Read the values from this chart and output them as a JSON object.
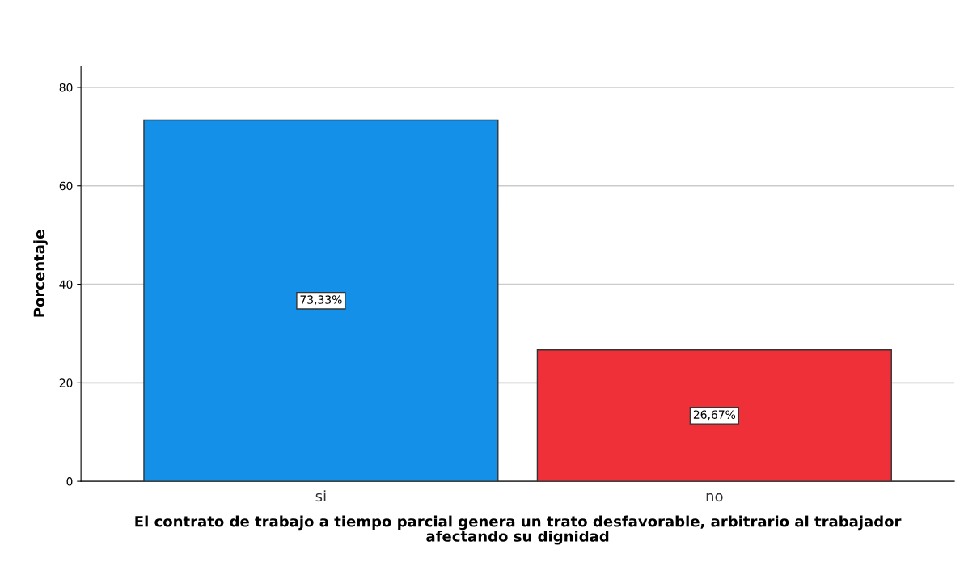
{
  "chart_data": {
    "type": "bar",
    "xlabel": "El contrato de trabajo a tiempo parcial genera un trato desfavorable, arbitrario al trabajador\nafectando su dignidad",
    "ylabel": "Porcentaje",
    "categories": [
      "si",
      "no"
    ],
    "values": [
      73.33,
      26.67
    ],
    "colors": [
      "#1590e8",
      "#ef3039"
    ],
    "value_labels": [
      "73,33%",
      "26,67%"
    ],
    "ylim": [
      0,
      84.3
    ],
    "yticks": [
      0,
      20,
      40,
      60,
      80
    ],
    "grid": "y"
  }
}
